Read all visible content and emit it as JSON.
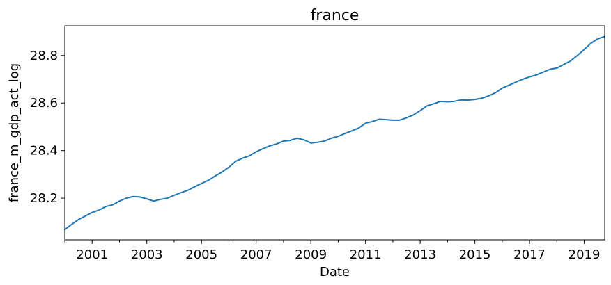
{
  "chart_data": {
    "type": "line",
    "title": "france",
    "xlabel": "Date",
    "ylabel": "france_m_gdp_act_log",
    "xlim": [
      "2000-01",
      "2019-10"
    ],
    "ylim": [
      28.025,
      28.925
    ],
    "x_ticks": [
      "2001",
      "2003",
      "2005",
      "2007",
      "2009",
      "2011",
      "2013",
      "2015",
      "2017",
      "2019"
    ],
    "y_ticks": [
      "28.2",
      "28.4",
      "28.6",
      "28.8"
    ],
    "grid": false,
    "legend": "none",
    "colors": {
      "series": "#1f77b4"
    },
    "series": [
      {
        "x": [
          "2000-01",
          "2000-04",
          "2000-07",
          "2000-10",
          "2001-01",
          "2001-04",
          "2001-07",
          "2001-10",
          "2002-01",
          "2002-04",
          "2002-07",
          "2002-10",
          "2003-01",
          "2003-04",
          "2003-07",
          "2003-10",
          "2004-01",
          "2004-04",
          "2004-07",
          "2004-10",
          "2005-01",
          "2005-04",
          "2005-07",
          "2005-10",
          "2006-01",
          "2006-04",
          "2006-07",
          "2006-10",
          "2007-01",
          "2007-04",
          "2007-07",
          "2007-10",
          "2008-01",
          "2008-04",
          "2008-07",
          "2008-10",
          "2009-01",
          "2009-04",
          "2009-07",
          "2009-10",
          "2010-01",
          "2010-04",
          "2010-07",
          "2010-10",
          "2011-01",
          "2011-04",
          "2011-07",
          "2011-10",
          "2012-01",
          "2012-04",
          "2012-07",
          "2012-10",
          "2013-01",
          "2013-04",
          "2013-07",
          "2013-10",
          "2014-01",
          "2014-04",
          "2014-07",
          "2014-10",
          "2015-01",
          "2015-04",
          "2015-07",
          "2015-10",
          "2016-01",
          "2016-04",
          "2016-07",
          "2016-10",
          "2017-01",
          "2017-04",
          "2017-07",
          "2017-10",
          "2018-01",
          "2018-04",
          "2018-07",
          "2018-10",
          "2019-01",
          "2019-04",
          "2019-07",
          "2019-10"
        ],
        "values": [
          28.068,
          28.09,
          28.11,
          28.125,
          28.14,
          28.15,
          28.165,
          28.172,
          28.188,
          28.2,
          28.207,
          28.205,
          28.197,
          28.188,
          28.195,
          28.2,
          28.212,
          28.223,
          28.233,
          28.248,
          28.262,
          28.275,
          28.293,
          28.31,
          28.33,
          28.355,
          28.368,
          28.378,
          28.395,
          28.408,
          28.42,
          28.428,
          28.44,
          28.443,
          28.452,
          28.445,
          28.432,
          28.435,
          28.44,
          28.452,
          28.46,
          28.472,
          28.483,
          28.495,
          28.515,
          28.522,
          28.532,
          28.53,
          28.528,
          28.528,
          28.538,
          28.55,
          28.568,
          28.588,
          28.597,
          28.607,
          28.605,
          28.607,
          28.613,
          28.612,
          28.615,
          28.62,
          28.63,
          28.643,
          28.663,
          28.675,
          28.688,
          28.7,
          28.71,
          28.718,
          28.73,
          28.742,
          28.747,
          28.762,
          28.777,
          28.8,
          28.825,
          28.852,
          28.87,
          28.88
        ]
      }
    ]
  }
}
